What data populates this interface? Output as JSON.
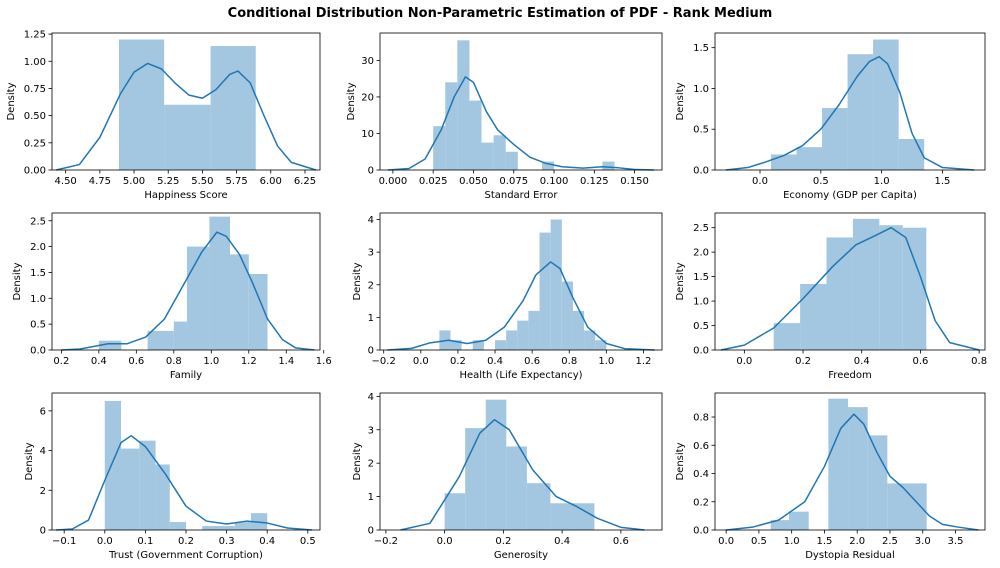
{
  "title": "Conditional Distribution Non-Parametric Estimation of PDF - Rank Medium",
  "colors": {
    "bar": "#a3c6e1",
    "kde": "#1f77b4",
    "axis": "#000000"
  },
  "chart_data": [
    {
      "type": "bar",
      "xlabel": "Happiness Score",
      "ylabel": "Density",
      "xlim": [
        4.4,
        6.36
      ],
      "ylim": [
        0,
        1.26
      ],
      "xticks": [
        4.5,
        4.75,
        5.0,
        5.25,
        5.5,
        5.75,
        6.0,
        6.25
      ],
      "xtick_labels": [
        "4.50",
        "4.75",
        "5.00",
        "5.25",
        "5.50",
        "5.75",
        "6.00",
        "6.25"
      ],
      "yticks": [
        0,
        0.25,
        0.5,
        0.75,
        1.0,
        1.25
      ],
      "ytick_labels": [
        "0.00",
        "0.25",
        "0.50",
        "0.75",
        "1.00",
        "1.25"
      ],
      "bins": [
        [
          4.89,
          5.22,
          1.2
        ],
        [
          5.22,
          5.56,
          0.6
        ],
        [
          5.56,
          5.89,
          1.14
        ]
      ],
      "kde": [
        [
          4.43,
          0.0
        ],
        [
          4.6,
          0.05
        ],
        [
          4.75,
          0.3
        ],
        [
          4.9,
          0.7
        ],
        [
          5.0,
          0.9
        ],
        [
          5.1,
          0.98
        ],
        [
          5.2,
          0.93
        ],
        [
          5.3,
          0.8
        ],
        [
          5.4,
          0.69
        ],
        [
          5.5,
          0.66
        ],
        [
          5.6,
          0.74
        ],
        [
          5.7,
          0.88
        ],
        [
          5.76,
          0.91
        ],
        [
          5.85,
          0.8
        ],
        [
          5.95,
          0.5
        ],
        [
          6.05,
          0.22
        ],
        [
          6.15,
          0.07
        ],
        [
          6.33,
          0.0
        ]
      ]
    },
    {
      "type": "bar",
      "xlabel": "Standard Error",
      "ylabel": "Density",
      "xlim": [
        -0.008,
        0.167
      ],
      "ylim": [
        0,
        37.5
      ],
      "xticks": [
        0.0,
        0.025,
        0.05,
        0.075,
        0.1,
        0.125,
        0.15
      ],
      "xtick_labels": [
        "0.000",
        "0.025",
        "0.050",
        "0.075",
        "0.100",
        "0.125",
        "0.150"
      ],
      "yticks": [
        0,
        10,
        20,
        30
      ],
      "ytick_labels": [
        "0",
        "10",
        "20",
        "30"
      ],
      "bins": [
        [
          0.025,
          0.0325,
          12
        ],
        [
          0.0325,
          0.04,
          24
        ],
        [
          0.04,
          0.0475,
          35.5
        ],
        [
          0.0475,
          0.055,
          19
        ],
        [
          0.055,
          0.0625,
          7.5
        ],
        [
          0.0625,
          0.07,
          9.5
        ],
        [
          0.07,
          0.0775,
          5
        ],
        [
          0.0775,
          0.085,
          0
        ],
        [
          0.085,
          0.0925,
          0
        ],
        [
          0.0925,
          0.1,
          2.3
        ],
        [
          0.1,
          0.1075,
          0
        ],
        [
          0.1075,
          0.115,
          0
        ],
        [
          0.115,
          0.1225,
          0
        ],
        [
          0.1225,
          0.13,
          0
        ],
        [
          0.13,
          0.1375,
          2.3
        ]
      ],
      "kde": [
        [
          -0.003,
          0.0
        ],
        [
          0.01,
          0.4
        ],
        [
          0.02,
          3
        ],
        [
          0.03,
          11
        ],
        [
          0.038,
          20
        ],
        [
          0.045,
          25.5
        ],
        [
          0.05,
          24
        ],
        [
          0.058,
          16
        ],
        [
          0.065,
          11
        ],
        [
          0.075,
          7
        ],
        [
          0.085,
          3.5
        ],
        [
          0.095,
          1.8
        ],
        [
          0.105,
          0.9
        ],
        [
          0.118,
          0.5
        ],
        [
          0.13,
          0.9
        ],
        [
          0.14,
          0.6
        ],
        [
          0.15,
          0.15
        ],
        [
          0.162,
          0.0
        ]
      ]
    },
    {
      "type": "bar",
      "xlabel": "Economy (GDP per Capita)",
      "ylabel": "Density",
      "xlim": [
        -0.37,
        1.85
      ],
      "ylim": [
        0,
        1.68
      ],
      "xticks": [
        0.0,
        0.5,
        1.0,
        1.5
      ],
      "xtick_labels": [
        "0.0",
        "0.5",
        "1.0",
        "1.5"
      ],
      "yticks": [
        0,
        0.5,
        1.0,
        1.5
      ],
      "ytick_labels": [
        "0.0",
        "0.5",
        "1.0",
        "1.5"
      ],
      "bins": [
        [
          0.09,
          0.3,
          0.19
        ],
        [
          0.3,
          0.51,
          0.28
        ],
        [
          0.51,
          0.72,
          0.76
        ],
        [
          0.72,
          0.93,
          1.42
        ],
        [
          0.93,
          1.14,
          1.6
        ],
        [
          1.14,
          1.35,
          0.38
        ]
      ],
      "kde": [
        [
          -0.28,
          0.0
        ],
        [
          -0.1,
          0.03
        ],
        [
          0.05,
          0.1
        ],
        [
          0.2,
          0.18
        ],
        [
          0.35,
          0.3
        ],
        [
          0.5,
          0.5
        ],
        [
          0.65,
          0.8
        ],
        [
          0.8,
          1.15
        ],
        [
          0.9,
          1.33
        ],
        [
          0.98,
          1.39
        ],
        [
          1.05,
          1.3
        ],
        [
          1.15,
          0.95
        ],
        [
          1.25,
          0.45
        ],
        [
          1.35,
          0.15
        ],
        [
          1.5,
          0.03
        ],
        [
          1.76,
          0.0
        ]
      ]
    },
    {
      "type": "bar",
      "xlabel": "Family",
      "ylabel": "Density",
      "xlim": [
        0.15,
        1.58
      ],
      "ylim": [
        0,
        2.65
      ],
      "xticks": [
        0.2,
        0.4,
        0.6,
        0.8,
        1.0,
        1.2,
        1.4,
        1.6
      ],
      "xtick_labels": [
        "0.2",
        "0.4",
        "0.6",
        "0.8",
        "1.0",
        "1.2",
        "1.4",
        "1.6"
      ],
      "yticks": [
        0,
        0.5,
        1.0,
        1.5,
        2.0,
        2.5
      ],
      "ytick_labels": [
        "0.0",
        "0.5",
        "1.0",
        "1.5",
        "2.0",
        "2.5"
      ],
      "bins": [
        [
          0.4,
          0.52,
          0.18
        ],
        [
          0.52,
          0.66,
          0
        ],
        [
          0.66,
          0.8,
          0.37
        ],
        [
          0.8,
          0.87,
          0.55
        ],
        [
          0.87,
          0.99,
          2.0
        ],
        [
          0.99,
          1.1,
          2.58
        ],
        [
          1.1,
          1.2,
          1.85
        ],
        [
          1.2,
          1.3,
          1.47
        ]
      ],
      "kde": [
        [
          0.2,
          0.0
        ],
        [
          0.3,
          0.02
        ],
        [
          0.45,
          0.12
        ],
        [
          0.55,
          0.12
        ],
        [
          0.65,
          0.25
        ],
        [
          0.75,
          0.6
        ],
        [
          0.85,
          1.25
        ],
        [
          0.95,
          1.9
        ],
        [
          1.03,
          2.28
        ],
        [
          1.08,
          2.2
        ],
        [
          1.15,
          1.85
        ],
        [
          1.22,
          1.3
        ],
        [
          1.3,
          0.6
        ],
        [
          1.38,
          0.2
        ],
        [
          1.45,
          0.04
        ],
        [
          1.55,
          0.0
        ]
      ]
    },
    {
      "type": "bar",
      "xlabel": "Health (Life Expectancy)",
      "ylabel": "Density",
      "xlim": [
        -0.22,
        1.3
      ],
      "ylim": [
        0,
        4.2
      ],
      "xticks": [
        -0.2,
        0.0,
        0.2,
        0.4,
        0.6,
        0.8,
        1.0,
        1.2
      ],
      "xtick_labels": [
        "−0.2",
        "0.0",
        "0.2",
        "0.4",
        "0.6",
        "0.8",
        "1.0",
        "1.2"
      ],
      "yticks": [
        0,
        1,
        2,
        3,
        4
      ],
      "ytick_labels": [
        "0",
        "1",
        "2",
        "3",
        "4"
      ],
      "bins": [
        [
          0.1,
          0.16,
          0.6
        ],
        [
          0.16,
          0.22,
          0.3
        ],
        [
          0.22,
          0.28,
          0
        ],
        [
          0.28,
          0.34,
          0.3
        ],
        [
          0.34,
          0.4,
          0
        ],
        [
          0.4,
          0.46,
          0.3
        ],
        [
          0.46,
          0.52,
          0.6
        ],
        [
          0.52,
          0.58,
          0.9
        ],
        [
          0.58,
          0.64,
          1.2
        ],
        [
          0.64,
          0.7,
          3.6
        ],
        [
          0.7,
          0.76,
          4.0
        ],
        [
          0.76,
          0.82,
          2.1
        ],
        [
          0.82,
          0.88,
          1.2
        ],
        [
          0.88,
          0.94,
          0.6
        ],
        [
          0.94,
          1.0,
          0.3
        ]
      ],
      "kde": [
        [
          -0.18,
          0.0
        ],
        [
          -0.05,
          0.05
        ],
        [
          0.05,
          0.22
        ],
        [
          0.15,
          0.3
        ],
        [
          0.25,
          0.2
        ],
        [
          0.35,
          0.3
        ],
        [
          0.45,
          0.7
        ],
        [
          0.55,
          1.5
        ],
        [
          0.62,
          2.3
        ],
        [
          0.7,
          2.7
        ],
        [
          0.75,
          2.5
        ],
        [
          0.82,
          1.6
        ],
        [
          0.9,
          0.7
        ],
        [
          1.0,
          0.2
        ],
        [
          1.1,
          0.04
        ],
        [
          1.26,
          0.0
        ]
      ]
    },
    {
      "type": "bar",
      "xlabel": "Freedom",
      "ylabel": "Density",
      "xlim": [
        -0.1,
        0.82
      ],
      "ylim": [
        0,
        2.8
      ],
      "xticks": [
        0.0,
        0.2,
        0.4,
        0.6,
        0.8
      ],
      "xtick_labels": [
        "0.0",
        "0.2",
        "0.4",
        "0.6",
        "0.8"
      ],
      "yticks": [
        0,
        0.5,
        1.0,
        1.5,
        2.0,
        2.5
      ],
      "ytick_labels": [
        "0.0",
        "0.5",
        "1.0",
        "1.5",
        "2.0",
        "2.5"
      ],
      "bins": [
        [
          0.1,
          0.19,
          0.55
        ],
        [
          0.19,
          0.28,
          1.35
        ],
        [
          0.28,
          0.37,
          2.3
        ],
        [
          0.37,
          0.46,
          2.68
        ],
        [
          0.46,
          0.54,
          2.55
        ],
        [
          0.54,
          0.62,
          2.5
        ]
      ],
      "kde": [
        [
          -0.08,
          0.0
        ],
        [
          0.0,
          0.1
        ],
        [
          0.1,
          0.45
        ],
        [
          0.2,
          1.05
        ],
        [
          0.3,
          1.7
        ],
        [
          0.38,
          2.15
        ],
        [
          0.45,
          2.35
        ],
        [
          0.5,
          2.5
        ],
        [
          0.55,
          2.3
        ],
        [
          0.6,
          1.5
        ],
        [
          0.65,
          0.6
        ],
        [
          0.7,
          0.15
        ],
        [
          0.8,
          0.0
        ]
      ]
    },
    {
      "type": "bar",
      "xlabel": "Trust (Government Corruption)",
      "ylabel": "Density",
      "xlim": [
        -0.13,
        0.53
      ],
      "ylim": [
        0,
        6.9
      ],
      "xticks": [
        -0.1,
        0.0,
        0.1,
        0.2,
        0.3,
        0.4,
        0.5
      ],
      "xtick_labels": [
        "−0.1",
        "0.0",
        "0.1",
        "0.2",
        "0.3",
        "0.4",
        "0.5"
      ],
      "yticks": [
        0,
        2,
        4,
        6
      ],
      "ytick_labels": [
        "0",
        "2",
        "4",
        "6"
      ],
      "bins": [
        [
          0.0,
          0.04,
          6.5
        ],
        [
          0.04,
          0.085,
          4.1
        ],
        [
          0.085,
          0.125,
          4.5
        ],
        [
          0.125,
          0.16,
          3.3
        ],
        [
          0.16,
          0.2,
          0.4
        ],
        [
          0.2,
          0.24,
          0
        ],
        [
          0.24,
          0.28,
          0.2
        ],
        [
          0.28,
          0.32,
          0.2
        ],
        [
          0.32,
          0.36,
          0.4
        ],
        [
          0.36,
          0.4,
          0.85
        ]
      ],
      "kde": [
        [
          -0.12,
          0.0
        ],
        [
          -0.08,
          0.05
        ],
        [
          -0.04,
          0.5
        ],
        [
          0.0,
          2.5
        ],
        [
          0.04,
          4.4
        ],
        [
          0.065,
          4.75
        ],
        [
          0.1,
          4.2
        ],
        [
          0.15,
          2.8
        ],
        [
          0.2,
          1.2
        ],
        [
          0.25,
          0.45
        ],
        [
          0.3,
          0.3
        ],
        [
          0.35,
          0.45
        ],
        [
          0.4,
          0.35
        ],
        [
          0.45,
          0.1
        ],
        [
          0.51,
          0.0
        ]
      ]
    },
    {
      "type": "bar",
      "xlabel": "Generosity",
      "ylabel": "Density",
      "xlim": [
        -0.22,
        0.74
      ],
      "ylim": [
        0,
        4.1
      ],
      "xticks": [
        -0.2,
        0.0,
        0.2,
        0.4,
        0.6
      ],
      "xtick_labels": [
        "−0.2",
        "0.0",
        "0.2",
        "0.4",
        "0.6"
      ],
      "yticks": [
        0,
        1,
        2,
        3,
        4
      ],
      "ytick_labels": [
        "0",
        "1",
        "2",
        "3",
        "4"
      ],
      "bins": [
        [
          0.0,
          0.07,
          1.1
        ],
        [
          0.07,
          0.14,
          3.05
        ],
        [
          0.14,
          0.21,
          3.9
        ],
        [
          0.21,
          0.28,
          2.5
        ],
        [
          0.28,
          0.36,
          1.4
        ],
        [
          0.36,
          0.43,
          0.8
        ],
        [
          0.43,
          0.51,
          0.8
        ]
      ],
      "kde": [
        [
          -0.15,
          0.0
        ],
        [
          -0.05,
          0.2
        ],
        [
          0.05,
          1.6
        ],
        [
          0.12,
          2.9
        ],
        [
          0.17,
          3.3
        ],
        [
          0.22,
          3.0
        ],
        [
          0.3,
          1.8
        ],
        [
          0.38,
          1.0
        ],
        [
          0.45,
          0.7
        ],
        [
          0.52,
          0.35
        ],
        [
          0.6,
          0.08
        ],
        [
          0.68,
          0.0
        ]
      ]
    },
    {
      "type": "bar",
      "xlabel": "Dystopia Residual",
      "ylabel": "Density",
      "xlim": [
        -0.17,
        3.95
      ],
      "ylim": [
        0,
        0.97
      ],
      "xticks": [
        0.0,
        0.5,
        1.0,
        1.5,
        2.0,
        2.5,
        3.0,
        3.5
      ],
      "xtick_labels": [
        "0.0",
        "0.5",
        "1.0",
        "1.5",
        "2.0",
        "2.5",
        "3.0",
        "3.5"
      ],
      "yticks": [
        0,
        0.2,
        0.4,
        0.6,
        0.8
      ],
      "ytick_labels": [
        "0.0",
        "0.2",
        "0.4",
        "0.6",
        "0.8"
      ],
      "bins": [
        [
          0.68,
          0.96,
          0.07
        ],
        [
          0.96,
          1.26,
          0.13
        ],
        [
          1.26,
          1.56,
          0
        ],
        [
          1.56,
          1.86,
          0.93
        ],
        [
          1.86,
          2.16,
          0.87
        ],
        [
          2.16,
          2.46,
          0.67
        ],
        [
          2.46,
          2.76,
          0.33
        ],
        [
          2.76,
          3.06,
          0.33
        ]
      ],
      "kde": [
        [
          0.0,
          0.0
        ],
        [
          0.4,
          0.02
        ],
        [
          0.8,
          0.07
        ],
        [
          1.2,
          0.2
        ],
        [
          1.5,
          0.45
        ],
        [
          1.75,
          0.72
        ],
        [
          1.95,
          0.82
        ],
        [
          2.1,
          0.75
        ],
        [
          2.3,
          0.55
        ],
        [
          2.5,
          0.38
        ],
        [
          2.7,
          0.3
        ],
        [
          2.9,
          0.2
        ],
        [
          3.1,
          0.1
        ],
        [
          3.3,
          0.04
        ],
        [
          3.55,
          0.02
        ],
        [
          3.85,
          0.0
        ]
      ]
    }
  ]
}
